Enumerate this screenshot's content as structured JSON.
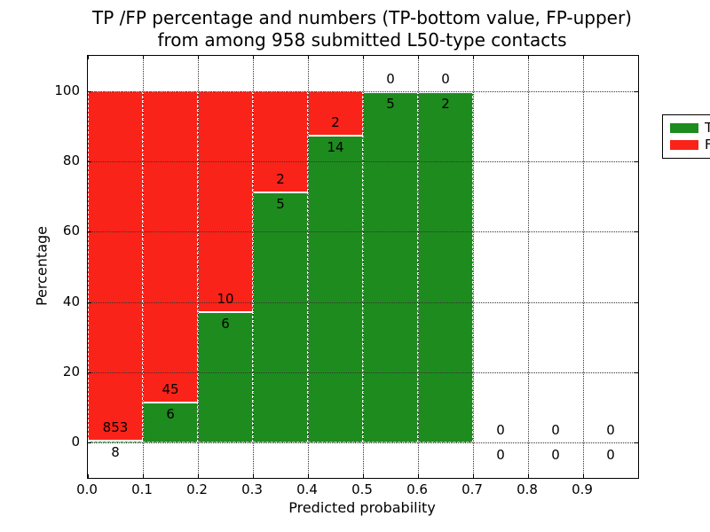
{
  "title": {
    "line1": "TP /FP percentage and numbers (TP-bottom value, FP-upper)",
    "line2": "from among 958 submitted L50-type contacts"
  },
  "axes": {
    "ylabel": "Percentage",
    "xlabel": "Predicted probability",
    "ytick_labels": [
      "0",
      "20",
      "40",
      "60",
      "80",
      "100"
    ],
    "ytick_values": [
      0,
      20,
      40,
      60,
      80,
      100
    ],
    "xtick_labels": [
      "0.0",
      "0.1",
      "0.2",
      "0.3",
      "0.4",
      "0.5",
      "0.6",
      "0.7",
      "0.8",
      "0.9"
    ],
    "xtick_values": [
      0.0,
      0.1,
      0.2,
      0.3,
      0.4,
      0.5,
      0.6,
      0.7,
      0.8,
      0.9
    ],
    "xgrid_values": [
      0.1,
      0.2,
      0.3,
      0.4,
      0.5,
      0.6,
      0.7,
      0.8,
      0.9
    ]
  },
  "legend": {
    "items": [
      {
        "label": "TP",
        "color": "#1e8b1e"
      },
      {
        "label": "FP",
        "color": "#fa2319"
      }
    ]
  },
  "colors": {
    "tp_green": "#1e8b1e",
    "fp_red": "#fa2319",
    "grid": "#333333",
    "background": "#ffffff"
  },
  "chart_data": {
    "type": "bar",
    "stacked": true,
    "normalized": "percent_of_bin_total",
    "title": "TP /FP percentage and numbers (TP-bottom value, FP-upper) from among 958 submitted L50-type contacts",
    "xlabel": "Predicted probability",
    "ylabel": "Percentage",
    "xlim": [
      0.0,
      1.0
    ],
    "ylim": [
      -10,
      110
    ],
    "bin_width": 0.1,
    "grid": true,
    "legend_position": "upper right",
    "total_submitted": 958,
    "series_names": [
      "TP",
      "FP"
    ],
    "bins": [
      {
        "x0": 0.0,
        "x1": 0.1,
        "tp": 8,
        "fp": 853,
        "tp_pct": 0.93,
        "fp_pct": 99.07
      },
      {
        "x0": 0.1,
        "x1": 0.2,
        "tp": 6,
        "fp": 45,
        "tp_pct": 11.76,
        "fp_pct": 88.24
      },
      {
        "x0": 0.2,
        "x1": 0.3,
        "tp": 6,
        "fp": 10,
        "tp_pct": 37.5,
        "fp_pct": 62.5
      },
      {
        "x0": 0.3,
        "x1": 0.4,
        "tp": 5,
        "fp": 2,
        "tp_pct": 71.43,
        "fp_pct": 28.57
      },
      {
        "x0": 0.4,
        "x1": 0.5,
        "tp": 14,
        "fp": 2,
        "tp_pct": 87.5,
        "fp_pct": 12.5
      },
      {
        "x0": 0.5,
        "x1": 0.6,
        "tp": 5,
        "fp": 0,
        "tp_pct": 100.0,
        "fp_pct": 0.0
      },
      {
        "x0": 0.6,
        "x1": 0.7,
        "tp": 2,
        "fp": 0,
        "tp_pct": 100.0,
        "fp_pct": 0.0
      },
      {
        "x0": 0.7,
        "x1": 0.8,
        "tp": 0,
        "fp": 0,
        "tp_pct": 0.0,
        "fp_pct": 0.0
      },
      {
        "x0": 0.8,
        "x1": 0.9,
        "tp": 0,
        "fp": 0,
        "tp_pct": 0.0,
        "fp_pct": 0.0
      },
      {
        "x0": 0.9,
        "x1": 1.0,
        "tp": 0,
        "fp": 0,
        "tp_pct": 0.0,
        "fp_pct": 0.0
      }
    ]
  }
}
